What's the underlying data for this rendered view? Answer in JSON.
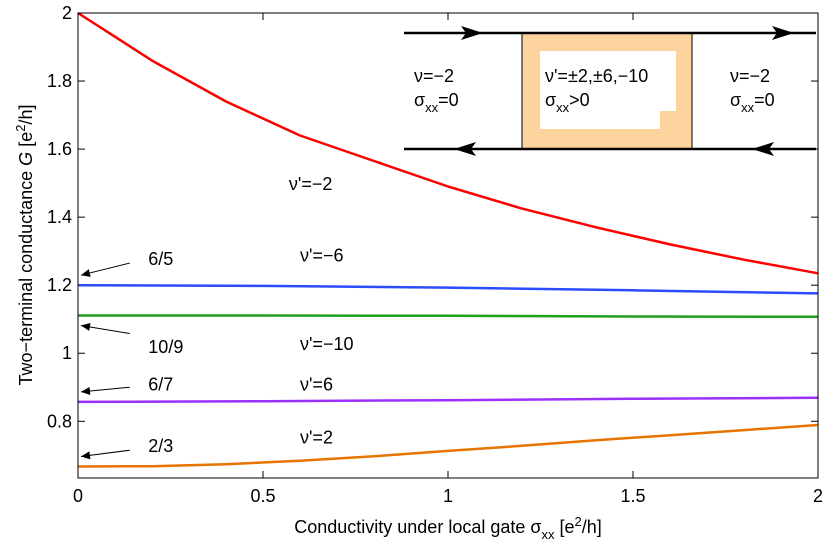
{
  "chart_data": {
    "type": "line",
    "title": "",
    "xlabel": {
      "main": "Conductivity under local gate σ",
      "sub": "xx",
      "unit_pre": " [e",
      "unit_sup": "2",
      "unit_post": "/h]"
    },
    "ylabel": {
      "main": "Two−terminal conductance ",
      "sym": "G",
      "unit_pre": " [e",
      "unit_sup": "2",
      "unit_post": "/h]"
    },
    "xlim": [
      0,
      2
    ],
    "ylim": [
      0.6333,
      2
    ],
    "xticks": [
      0,
      0.5,
      1,
      1.5,
      2
    ],
    "xtick_labels": [
      "0",
      "0.5",
      "1",
      "1.5",
      "2"
    ],
    "yticks": [
      0.8,
      1,
      1.2,
      1.4,
      1.6,
      1.8,
      2
    ],
    "ytick_labels": [
      "0.8",
      "1",
      "1.2",
      "1.4",
      "1.6",
      "1.8",
      "2"
    ],
    "series": [
      {
        "name": "ν'=−2",
        "color": "#ff0000",
        "x": [
          0,
          0.2,
          0.4,
          0.6,
          0.8,
          1.0,
          1.2,
          1.4,
          1.6,
          1.8,
          2.0
        ],
        "y": [
          2.0,
          1.86,
          1.74,
          1.64,
          1.565,
          1.49,
          1.425,
          1.37,
          1.32,
          1.275,
          1.235
        ]
      },
      {
        "name": "ν'=−6",
        "color": "#2b4cff",
        "x": [
          0,
          0.5,
          1.0,
          1.5,
          2.0
        ],
        "y": [
          1.2,
          1.198,
          1.193,
          1.185,
          1.176
        ]
      },
      {
        "name": "ν'=−10",
        "color": "#1e9e1e",
        "x": [
          0,
          0.5,
          1.0,
          1.5,
          2.0
        ],
        "y": [
          1.111,
          1.111,
          1.11,
          1.108,
          1.107
        ]
      },
      {
        "name": "ν'=6",
        "color": "#9b30ff",
        "x": [
          0,
          0.5,
          1.0,
          1.5,
          2.0
        ],
        "y": [
          0.857,
          0.859,
          0.862,
          0.866,
          0.869
        ]
      },
      {
        "name": "ν'=2",
        "color": "#e87400",
        "x": [
          0,
          0.2,
          0.4,
          0.6,
          0.8,
          1.0,
          1.2,
          1.4,
          1.6,
          1.8,
          2.0
        ],
        "y": [
          0.667,
          0.668,
          0.674,
          0.684,
          0.697,
          0.713,
          0.728,
          0.744,
          0.759,
          0.774,
          0.789
        ]
      }
    ],
    "series_labels": [
      {
        "text": "ν'=−2",
        "x": 0.57,
        "y": 1.48
      },
      {
        "text": "ν'=−6",
        "x": 0.6,
        "y": 1.27
      },
      {
        "text": "ν'=−10",
        "x": 0.6,
        "y": 1.01
      },
      {
        "text": "ν'=6",
        "x": 0.6,
        "y": 0.89
      },
      {
        "text": "ν'=2",
        "x": 0.6,
        "y": 0.735
      }
    ],
    "fraction_annotations": [
      {
        "text": "6/5",
        "value": 1.2,
        "label_x": 0.19,
        "label_y": 1.26,
        "tail_x": 0.14,
        "tail_y": 1.265
      },
      {
        "text": "10/9",
        "value": 1.111,
        "label_x": 0.19,
        "label_y": 1.0,
        "tail_x": 0.14,
        "tail_y": 1.058
      },
      {
        "text": "6/7",
        "value": 0.857,
        "label_x": 0.19,
        "label_y": 0.89,
        "tail_x": 0.14,
        "tail_y": 0.9
      },
      {
        "text": "2/3",
        "value": 0.667,
        "label_x": 0.19,
        "label_y": 0.71,
        "tail_x": 0.14,
        "tail_y": 0.715
      }
    ],
    "inset": {
      "left": {
        "nu": "ν=−2",
        "sigma": "σ",
        "sigma_sub": "xx",
        "sigma_val": "=0"
      },
      "middle": {
        "nu": "ν'=±2,±6,−10",
        "sigma": "σ",
        "sigma_sub": "xx",
        "sigma_val": ">0"
      },
      "right": {
        "nu": "ν=−2",
        "sigma": "σ",
        "sigma_sub": "xx",
        "sigma_val": "=0"
      },
      "fill_color": "#fdd49e"
    }
  }
}
